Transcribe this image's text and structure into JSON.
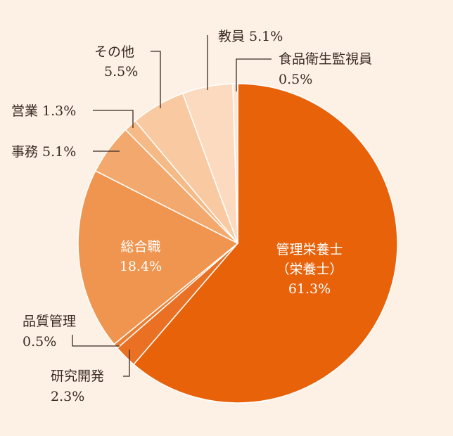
{
  "chart_data": {
    "type": "pie",
    "title": "",
    "slices": [
      {
        "label": "管理栄養士（栄養士）",
        "display_lines": [
          "管理栄養士",
          "（栄養士）"
        ],
        "value": 61.3,
        "value_text": "61.3%",
        "color": "#e8620a"
      },
      {
        "label": "研究開発",
        "display_lines": [
          "研究開発"
        ],
        "value": 2.3,
        "value_text": "2.3%",
        "color": "#ea7124"
      },
      {
        "label": "品質管理",
        "display_lines": [
          "品質管理"
        ],
        "value": 0.5,
        "value_text": "0.5%",
        "color": "#ec7e33"
      },
      {
        "label": "総合職",
        "display_lines": [
          "総合職"
        ],
        "value": 18.4,
        "value_text": "18.4%",
        "color": "#ef954f"
      },
      {
        "label": "事務",
        "display_lines": [
          "事務"
        ],
        "value": 5.1,
        "value_text": "5.1%",
        "color": "#f3a96d"
      },
      {
        "label": "営業",
        "display_lines": [
          "営業"
        ],
        "value": 1.3,
        "value_text": "1.3%",
        "color": "#f6ba86"
      },
      {
        "label": "その他",
        "display_lines": [
          "その他"
        ],
        "value": 5.5,
        "value_text": "5.5%",
        "color": "#f9caa1"
      },
      {
        "label": "教員",
        "display_lines": [
          "教員"
        ],
        "value": 5.1,
        "value_text": "5.1%",
        "color": "#fbdac0"
      },
      {
        "label": "食品衛生監視員",
        "display_lines": [
          "食品衛生監視員"
        ],
        "value": 0.5,
        "value_text": "0.5%",
        "color": "#fde7d3"
      }
    ],
    "start": "top",
    "direction": "clockwise",
    "colors": {
      "background": "#fdf1e6",
      "separator": "#ffffff",
      "text": "#3a2a22"
    }
  }
}
